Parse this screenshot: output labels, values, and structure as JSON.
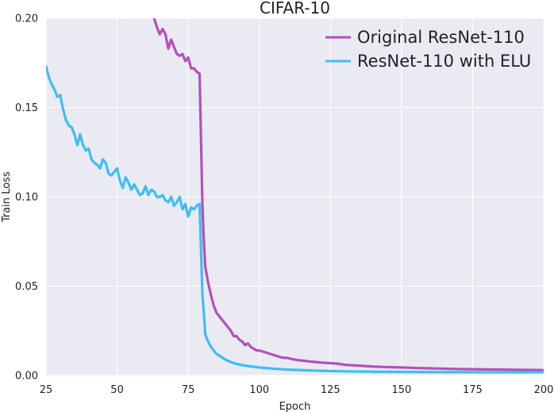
{
  "chart_data": {
    "type": "line",
    "title": "CIFAR-10",
    "xlabel": "Epoch",
    "ylabel": "Train Loss",
    "xlim": [
      25,
      200
    ],
    "ylim": [
      0,
      0.2
    ],
    "xticks": [
      "25",
      "50",
      "75",
      "100",
      "125",
      "150",
      "175",
      "200"
    ],
    "yticks": [
      "0.00",
      "0.05",
      "0.10",
      "0.15",
      "0.20"
    ],
    "grid": true,
    "legend_position": "top-right",
    "series": [
      {
        "name": "Original ResNet-110",
        "color": "#b450b8",
        "x": [
          60,
          61,
          62,
          63,
          64,
          65,
          66,
          67,
          68,
          69,
          70,
          71,
          72,
          73,
          74,
          75,
          76,
          77,
          78,
          79,
          80,
          80.5,
          81,
          82,
          83,
          84,
          85,
          86,
          87,
          88,
          89,
          90,
          91,
          92,
          93,
          94,
          95,
          96,
          97,
          98,
          99,
          100,
          102,
          104,
          106,
          108,
          110,
          112,
          114,
          116,
          118,
          120,
          122,
          124,
          126,
          128,
          130,
          135,
          140,
          145,
          150,
          155,
          160,
          165,
          170,
          175,
          180,
          185,
          190,
          195,
          200
        ],
        "values": [
          0.219,
          0.21,
          0.205,
          0.2,
          0.195,
          0.191,
          0.194,
          0.191,
          0.183,
          0.188,
          0.184,
          0.18,
          0.179,
          0.18,
          0.176,
          0.178,
          0.172,
          0.172,
          0.17,
          0.169,
          0.095,
          0.075,
          0.061,
          0.052,
          0.045,
          0.039,
          0.035,
          0.033,
          0.031,
          0.029,
          0.027,
          0.025,
          0.022,
          0.022,
          0.02,
          0.019,
          0.017,
          0.018,
          0.016,
          0.015,
          0.014,
          0.014,
          0.013,
          0.012,
          0.011,
          0.01,
          0.0098,
          0.009,
          0.0085,
          0.0082,
          0.0078,
          0.0075,
          0.0072,
          0.007,
          0.0068,
          0.0065,
          0.006,
          0.0055,
          0.005,
          0.0047,
          0.0045,
          0.0042,
          0.004,
          0.0038,
          0.0036,
          0.0035,
          0.0034,
          0.0033,
          0.0032,
          0.0031,
          0.003
        ]
      },
      {
        "name": "ResNet-110 with ELU",
        "color": "#3fbdf5",
        "x": [
          25,
          26,
          27,
          28,
          29,
          30,
          31,
          32,
          33,
          34,
          35,
          36,
          37,
          38,
          39,
          40,
          41,
          42,
          43,
          44,
          45,
          46,
          47,
          48,
          49,
          50,
          51,
          52,
          53,
          54,
          55,
          56,
          57,
          58,
          59,
          60,
          61,
          62,
          63,
          64,
          65,
          66,
          67,
          68,
          69,
          70,
          71,
          72,
          73,
          74,
          75,
          76,
          77,
          78,
          79,
          80,
          80.5,
          81,
          82,
          83,
          84,
          85,
          86,
          87,
          88,
          90,
          92,
          95,
          100,
          105,
          110,
          115,
          120,
          125,
          130,
          140,
          150,
          160,
          170,
          180,
          190,
          200
        ],
        "values": [
          0.173,
          0.167,
          0.163,
          0.16,
          0.156,
          0.157,
          0.149,
          0.143,
          0.14,
          0.139,
          0.135,
          0.129,
          0.135,
          0.129,
          0.126,
          0.127,
          0.121,
          0.119,
          0.118,
          0.116,
          0.121,
          0.119,
          0.113,
          0.112,
          0.114,
          0.116,
          0.109,
          0.105,
          0.111,
          0.108,
          0.104,
          0.107,
          0.104,
          0.101,
          0.102,
          0.106,
          0.101,
          0.104,
          0.103,
          0.1,
          0.1,
          0.101,
          0.098,
          0.097,
          0.1,
          0.095,
          0.097,
          0.1,
          0.093,
          0.096,
          0.089,
          0.094,
          0.093,
          0.095,
          0.096,
          0.045,
          0.035,
          0.023,
          0.019,
          0.016,
          0.014,
          0.012,
          0.011,
          0.01,
          0.009,
          0.0075,
          0.0065,
          0.0055,
          0.0045,
          0.0038,
          0.0033,
          0.003,
          0.0027,
          0.0025,
          0.0023,
          0.0021,
          0.002,
          0.0019,
          0.0019,
          0.0018,
          0.0018,
          0.0018
        ]
      }
    ]
  }
}
